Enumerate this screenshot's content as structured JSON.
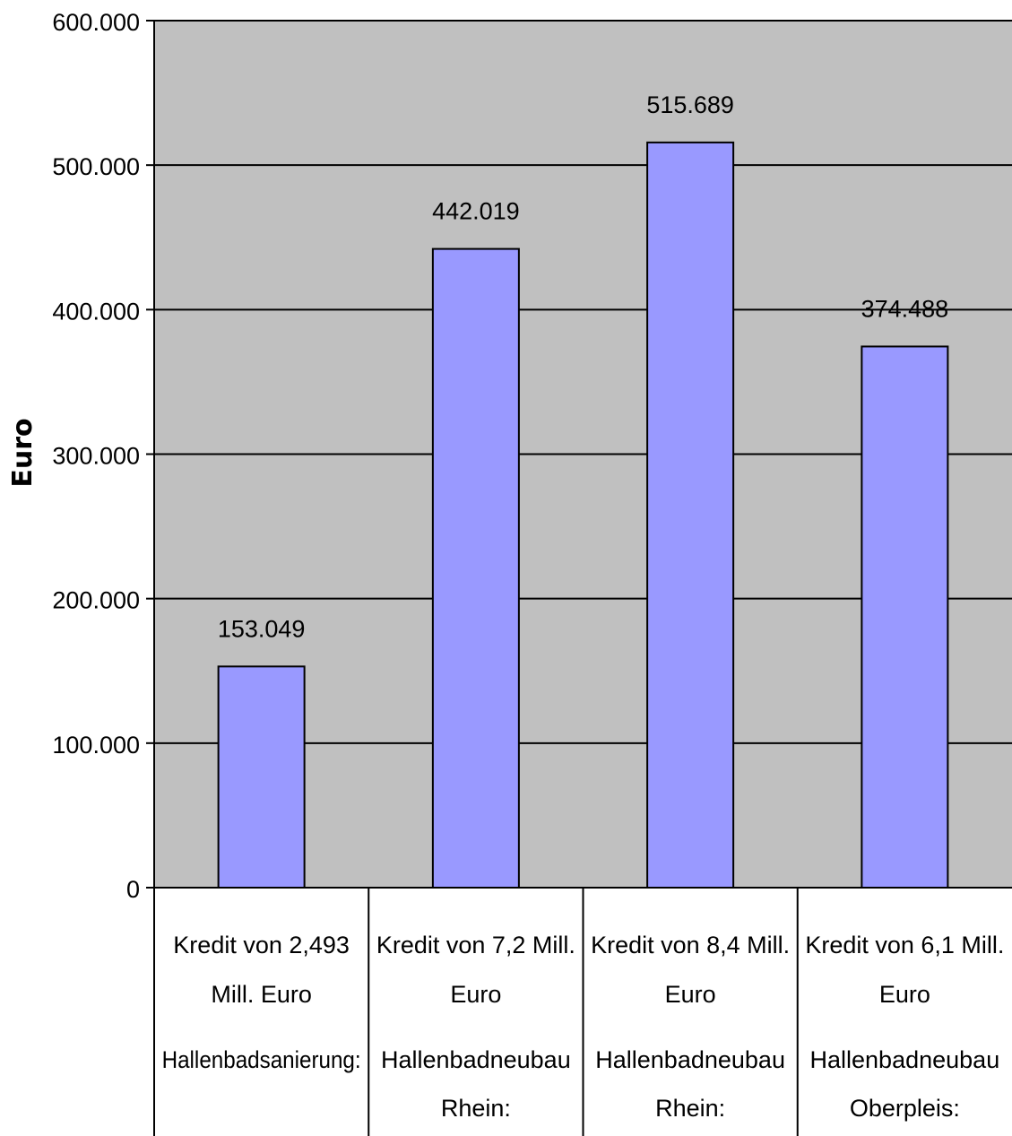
{
  "chart_data": {
    "type": "bar",
    "title": "",
    "xlabel": "",
    "ylabel": "Euro",
    "ylim": [
      0,
      600000
    ],
    "yticks": [
      0,
      100000,
      200000,
      300000,
      400000,
      500000,
      600000
    ],
    "ytick_labels": [
      "0",
      "100.000",
      "200.000",
      "300.000",
      "400.000",
      "500.000",
      "600.000"
    ],
    "grid": true,
    "legend": "none",
    "categories": [
      [
        "Kredit von 2,493",
        "Mill. Euro",
        "Hallenbadsanierung:",
        ""
      ],
      [
        "Kredit von 7,2 Mill.",
        "Euro",
        "Hallenbadneubau",
        "Rhein:"
      ],
      [
        "Kredit von 8,4 Mill.",
        "Euro",
        "Hallenbadneubau",
        "Rhein:"
      ],
      [
        "Kredit von 6,1 Mill.",
        "Euro",
        "Hallenbadneubau",
        "Oberpleis:"
      ]
    ],
    "values": [
      153049,
      442019,
      515689,
      374488
    ],
    "data_labels": [
      "153.049",
      "442.019",
      "515.689",
      "374.488"
    ],
    "colors": {
      "plot_background": "#c0c0c0",
      "bar_fill": "#9999ff",
      "bar_stroke": "#000000",
      "gridline": "#000000"
    }
  }
}
